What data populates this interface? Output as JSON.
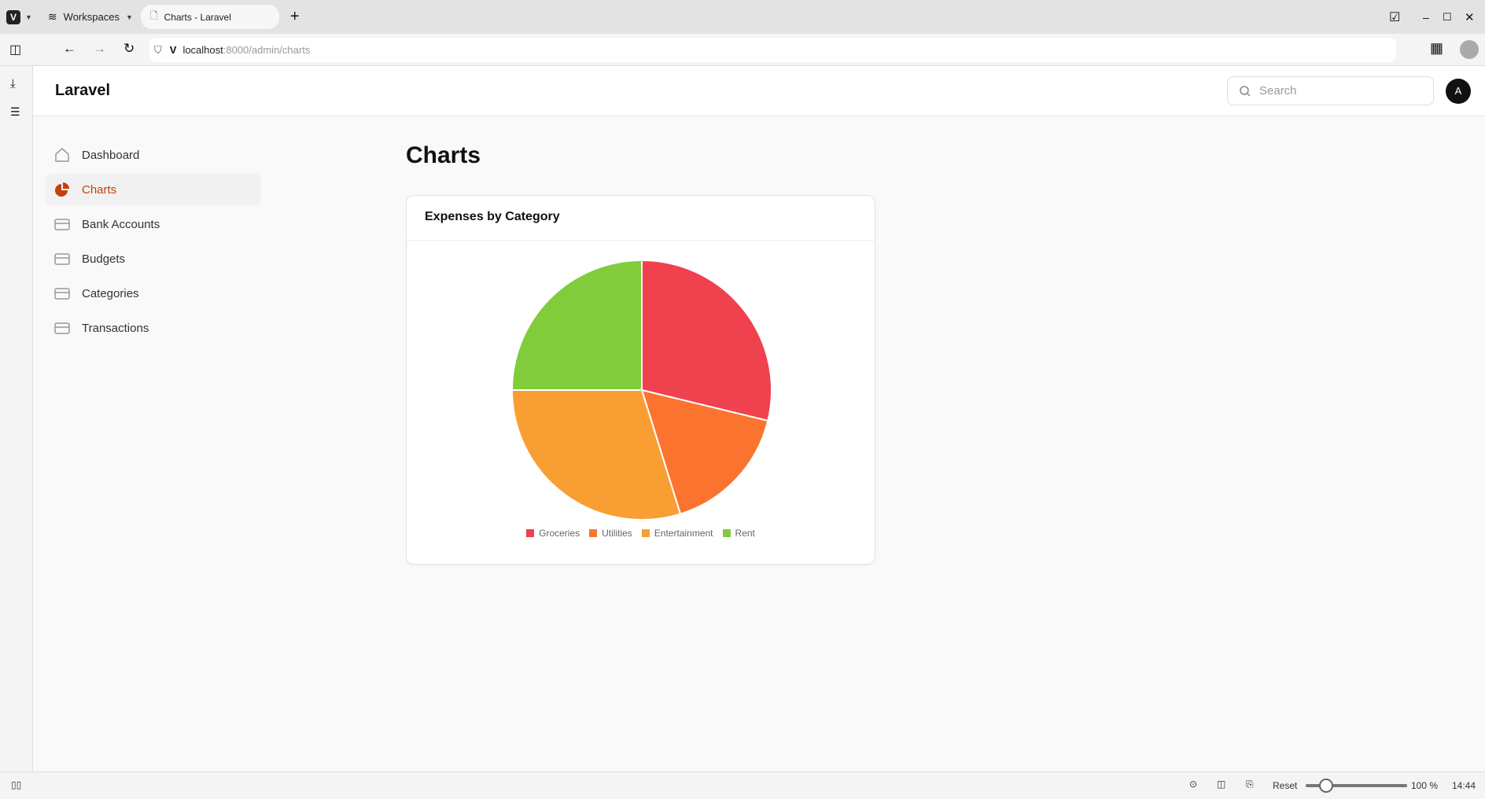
{
  "browser": {
    "workspaces": "Workspaces",
    "tab_title": "Charts - Laravel",
    "url_host": "localhost",
    "url_rest": ":8000/admin/charts"
  },
  "app": {
    "brand": "Laravel",
    "search_placeholder": "Search",
    "avatar": "A"
  },
  "sidebar": {
    "items": [
      {
        "label": "Dashboard",
        "icon": "home-icon"
      },
      {
        "label": "Charts",
        "icon": "pie-chart-icon",
        "active": true
      },
      {
        "label": "Bank Accounts",
        "icon": "inbox-icon"
      },
      {
        "label": "Budgets",
        "icon": "inbox-icon"
      },
      {
        "label": "Categories",
        "icon": "inbox-icon"
      },
      {
        "label": "Transactions",
        "icon": "inbox-icon"
      }
    ]
  },
  "page": {
    "title": "Charts"
  },
  "chart_data": {
    "type": "pie",
    "title": "Expenses by Category",
    "categories": [
      "Groceries",
      "Utilities",
      "Entertainment",
      "Rent"
    ],
    "values": [
      28.8,
      16.4,
      29.8,
      25.0
    ],
    "colors": [
      "#f0414f",
      "#fb742f",
      "#f99e33",
      "#80cc3b"
    ],
    "legend": "bottom"
  },
  "statusbar": {
    "reset": "Reset",
    "zoom": "100 %",
    "time": "14:44",
    "zoom_level": 100
  }
}
